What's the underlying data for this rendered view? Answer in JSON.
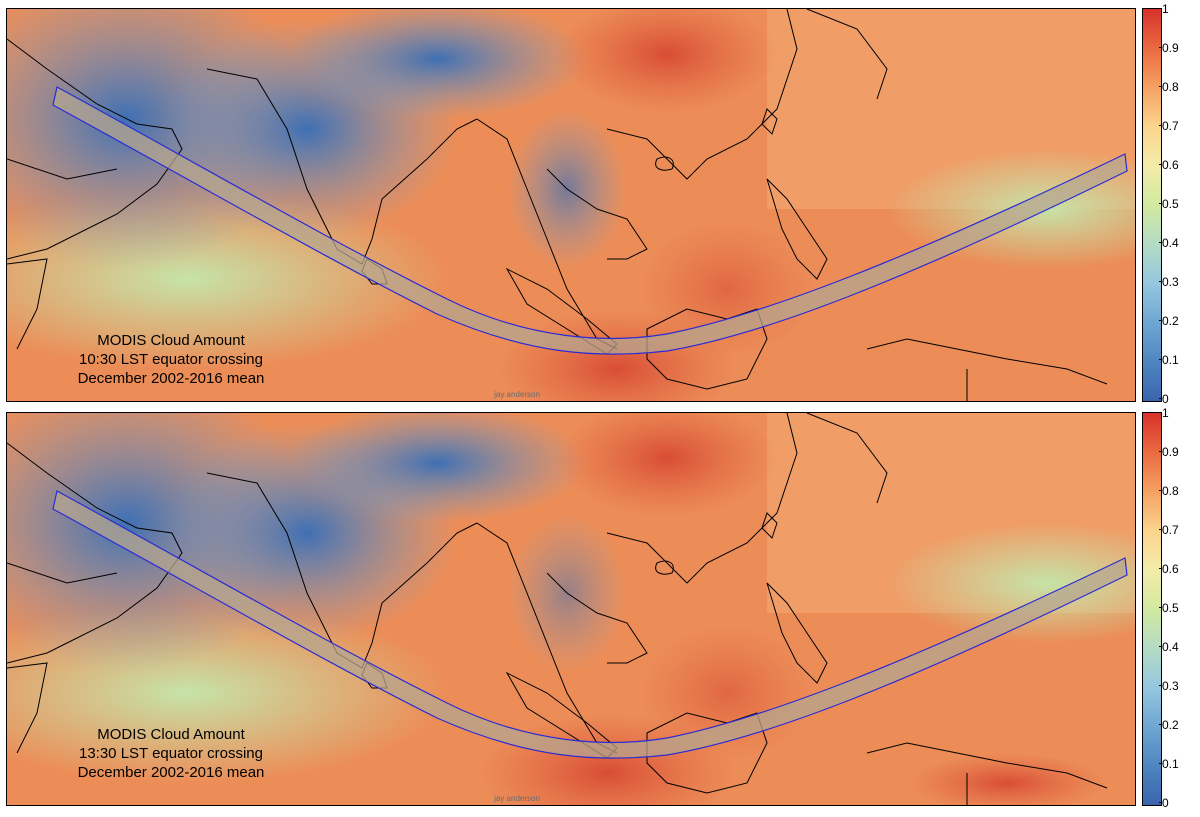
{
  "panels": [
    {
      "caption": [
        "MODIS Cloud Amount",
        "10:30 LST equator crossing",
        "December 2002-2016 mean"
      ],
      "credit": "jay anderson"
    },
    {
      "caption": [
        "MODIS Cloud Amount",
        "13:30 LST equator crossing",
        "December 2002-2016 mean"
      ],
      "credit": "jay anderson"
    }
  ],
  "colorbar": {
    "ticks": [
      "0",
      "0.1",
      "0.2",
      "0.3",
      "0.4",
      "0.5",
      "0.6",
      "0.7",
      "0.8",
      "0.9",
      "1"
    ],
    "colors": {
      "low": "#3a64ad",
      "mid": "#f3ecaa",
      "high": "#d7312b"
    }
  },
  "map": {
    "eclipse_path_fill": "#b5a58f",
    "eclipse_path_outline": "#2b2bd4",
    "coastline_color": "#000000"
  }
}
